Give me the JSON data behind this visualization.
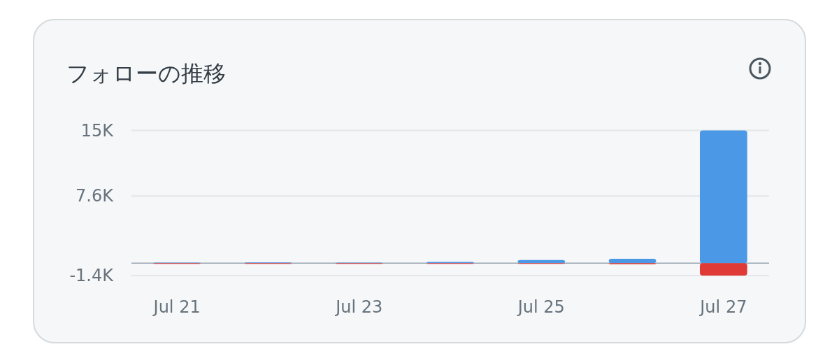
{
  "chart_data": {
    "type": "bar",
    "title": "フォローの推移",
    "categories": [
      "Jul 21",
      null,
      "Jul 23",
      null,
      "Jul 25",
      null,
      "Jul 27"
    ],
    "series": [
      {
        "color": "#4a98e6",
        "values": [
          60,
          80,
          70,
          150,
          350,
          500,
          15000
        ]
      },
      {
        "color": "#e03a36",
        "values": [
          -20,
          -30,
          -20,
          -30,
          -60,
          -120,
          -1400
        ]
      }
    ],
    "stacked": true,
    "ylim": [
      -1400,
      15000
    ],
    "yticks": [
      {
        "value": 15000,
        "label": "15K"
      },
      {
        "value": 7600,
        "label": "7.6K"
      },
      {
        "value": -1400,
        "label": "-1.4K"
      }
    ],
    "grid": "y"
  }
}
